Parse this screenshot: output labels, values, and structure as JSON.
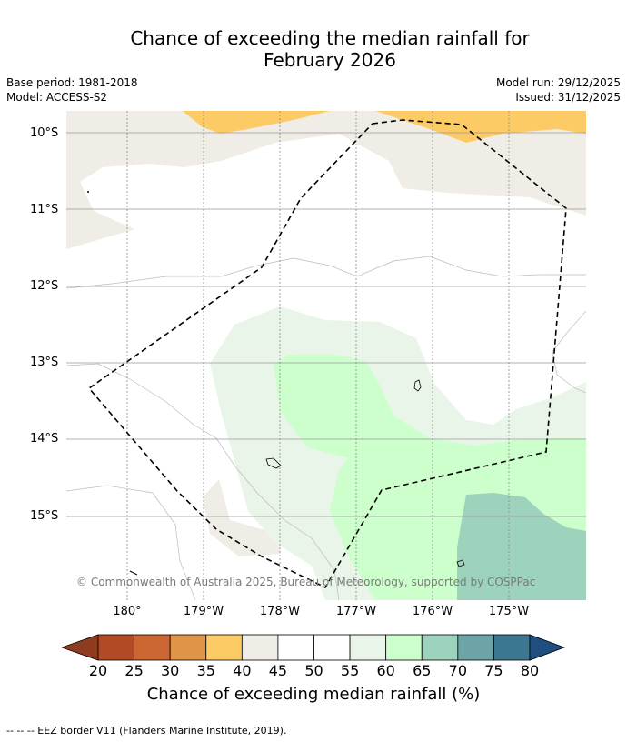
{
  "title": {
    "line1": "Chance of exceeding the median rainfall for",
    "line2": "February 2026"
  },
  "meta": {
    "base_period": "Base period: 1981-2018",
    "model": "Model: ACCESS-S2",
    "model_run": "Model run: 29/12/2025",
    "issued": "Issued: 31/12/2025"
  },
  "axes": {
    "lat_labels": [
      "10°S",
      "11°S",
      "12°S",
      "13°S",
      "14°S",
      "15°S"
    ],
    "lon_labels": [
      "180°",
      "179°W",
      "178°W",
      "177°W",
      "176°W",
      "175°W"
    ]
  },
  "credit": "© Commonwealth of Australia 2025, Bureau of Meteorology, supported by COSPPac",
  "colorbar": {
    "title": "Chance of exceeding median rainfall (%)",
    "ticks": [
      "20",
      "25",
      "30",
      "35",
      "40",
      "45",
      "50",
      "55",
      "60",
      "65",
      "70",
      "75",
      "80"
    ],
    "under_color": "#8f3b20",
    "colors": [
      "#b34a26",
      "#cc6633",
      "#e09447",
      "#fdcb66",
      "#f0ece6",
      "#ffffff",
      "#ffffff",
      "#eaf5ea",
      "#ccffcc",
      "#9dd3bc",
      "#6ca4a8",
      "#3d7691"
    ],
    "over_color": "#1e4f80"
  },
  "legend": {
    "eez": "--  --  -- EEZ border V11 (Flanders Marine Institute, 2019)."
  }
}
